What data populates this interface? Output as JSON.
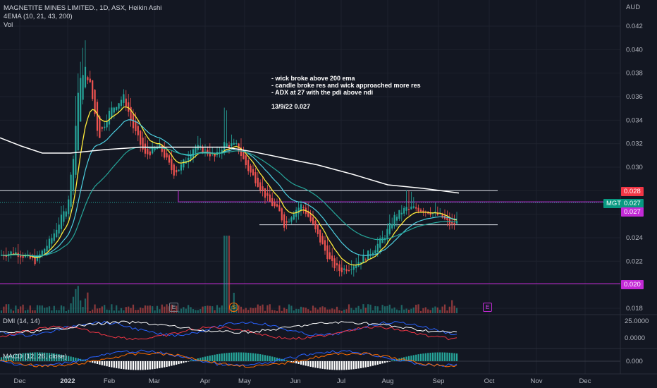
{
  "header": {
    "symbol": "MAGNETITE MINES LIMITED., 1D, ASX, Heikin Ashi",
    "indicator1": "4EMA (10, 21, 43, 200)",
    "indicator2": "Vol"
  },
  "note": "- wick broke above 200 ema\n- candle broke res and wick approached more res\n- ADX at 27 with the pdi above ndi\n\n13/9/22 0.027",
  "axis": {
    "currency": "AUD",
    "price_ticks": [
      "0.042",
      "0.040",
      "0.038",
      "0.036",
      "0.034",
      "0.032",
      "0.030",
      "0.028",
      "0.026",
      "0.024",
      "0.022",
      "0.020",
      "0.018"
    ],
    "dmi_ticks": [
      "25.0000",
      "0.0000"
    ],
    "macd_ticks": [
      "0.000"
    ],
    "time_ticks": [
      "Dec",
      "2022",
      "Feb",
      "Mar",
      "Apr",
      "May",
      "Jun",
      "Jul",
      "Aug",
      "Sep",
      "Oct",
      "Nov",
      "Dec"
    ]
  },
  "badges": {
    "res_upper": "0.028",
    "ticker": "MGT",
    "last": "0.027",
    "last2": "0.027",
    "support": "0.020"
  },
  "indicators": {
    "dmi": "DMI (14, 14)",
    "macd": "MACD (12, 26, close)"
  },
  "events": {
    "e1": "E",
    "s1": "S",
    "e2": "E"
  },
  "colors": {
    "up": "#26a69a",
    "down": "#ef5350",
    "ema10": "#ffeb3b",
    "ema21": "#4dd0e1",
    "ema43": "#26a69a",
    "ema200": "#ffffff",
    "magenta": "#c32ad6"
  },
  "chart_data": {
    "type": "candlestick",
    "title": "MAGNETITE MINES LIMITED., 1D, ASX, Heikin Ashi",
    "ylabel": "AUD",
    "ylim": [
      0.0175,
      0.0435
    ],
    "levels": [
      0.028,
      0.027,
      0.025,
      0.02
    ],
    "last_close": 0.027,
    "annotated_date": "13/9/22"
  }
}
